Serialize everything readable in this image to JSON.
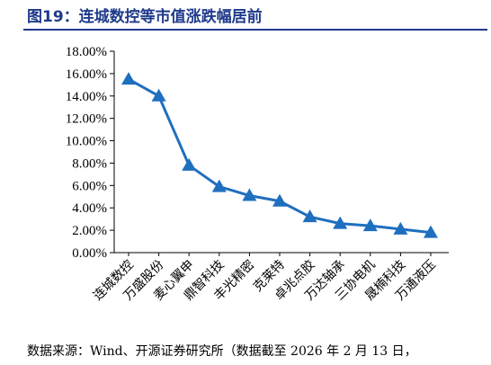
{
  "figure": {
    "title": "图19：连城数控等市值涨跌幅居前",
    "source": "数据来源：Wind、开源证券研究所（数据截至 2026 年 2 月 13 日，"
  },
  "colors": {
    "title": "#1f3a8a",
    "series": "#1f6fbf",
    "axis": "#000000"
  },
  "chart_data": {
    "type": "line",
    "title": "",
    "xlabel": "",
    "ylabel": "",
    "categories": [
      "连城数控",
      "万盛股份",
      "麦心翼申",
      "鼎智科技",
      "丰光精密",
      "克莱特",
      "卓兆点胶",
      "万达轴承",
      "三协电机",
      "晟楠科技",
      "万通液压"
    ],
    "series": [
      {
        "values": [
          15.5,
          14.0,
          7.8,
          5.9,
          5.1,
          4.6,
          3.2,
          2.6,
          2.4,
          2.1,
          1.8
        ]
      }
    ],
    "ylim": [
      0,
      18
    ],
    "yticks": [
      "0.00%",
      "2.00%",
      "4.00%",
      "6.00%",
      "8.00%",
      "10.00%",
      "12.00%",
      "14.00%",
      "16.00%",
      "18.00%"
    ],
    "ytick_values": [
      0,
      2,
      4,
      6,
      8,
      10,
      12,
      14,
      16,
      18
    ],
    "marker": "triangle",
    "grid": false,
    "legend": "none"
  }
}
